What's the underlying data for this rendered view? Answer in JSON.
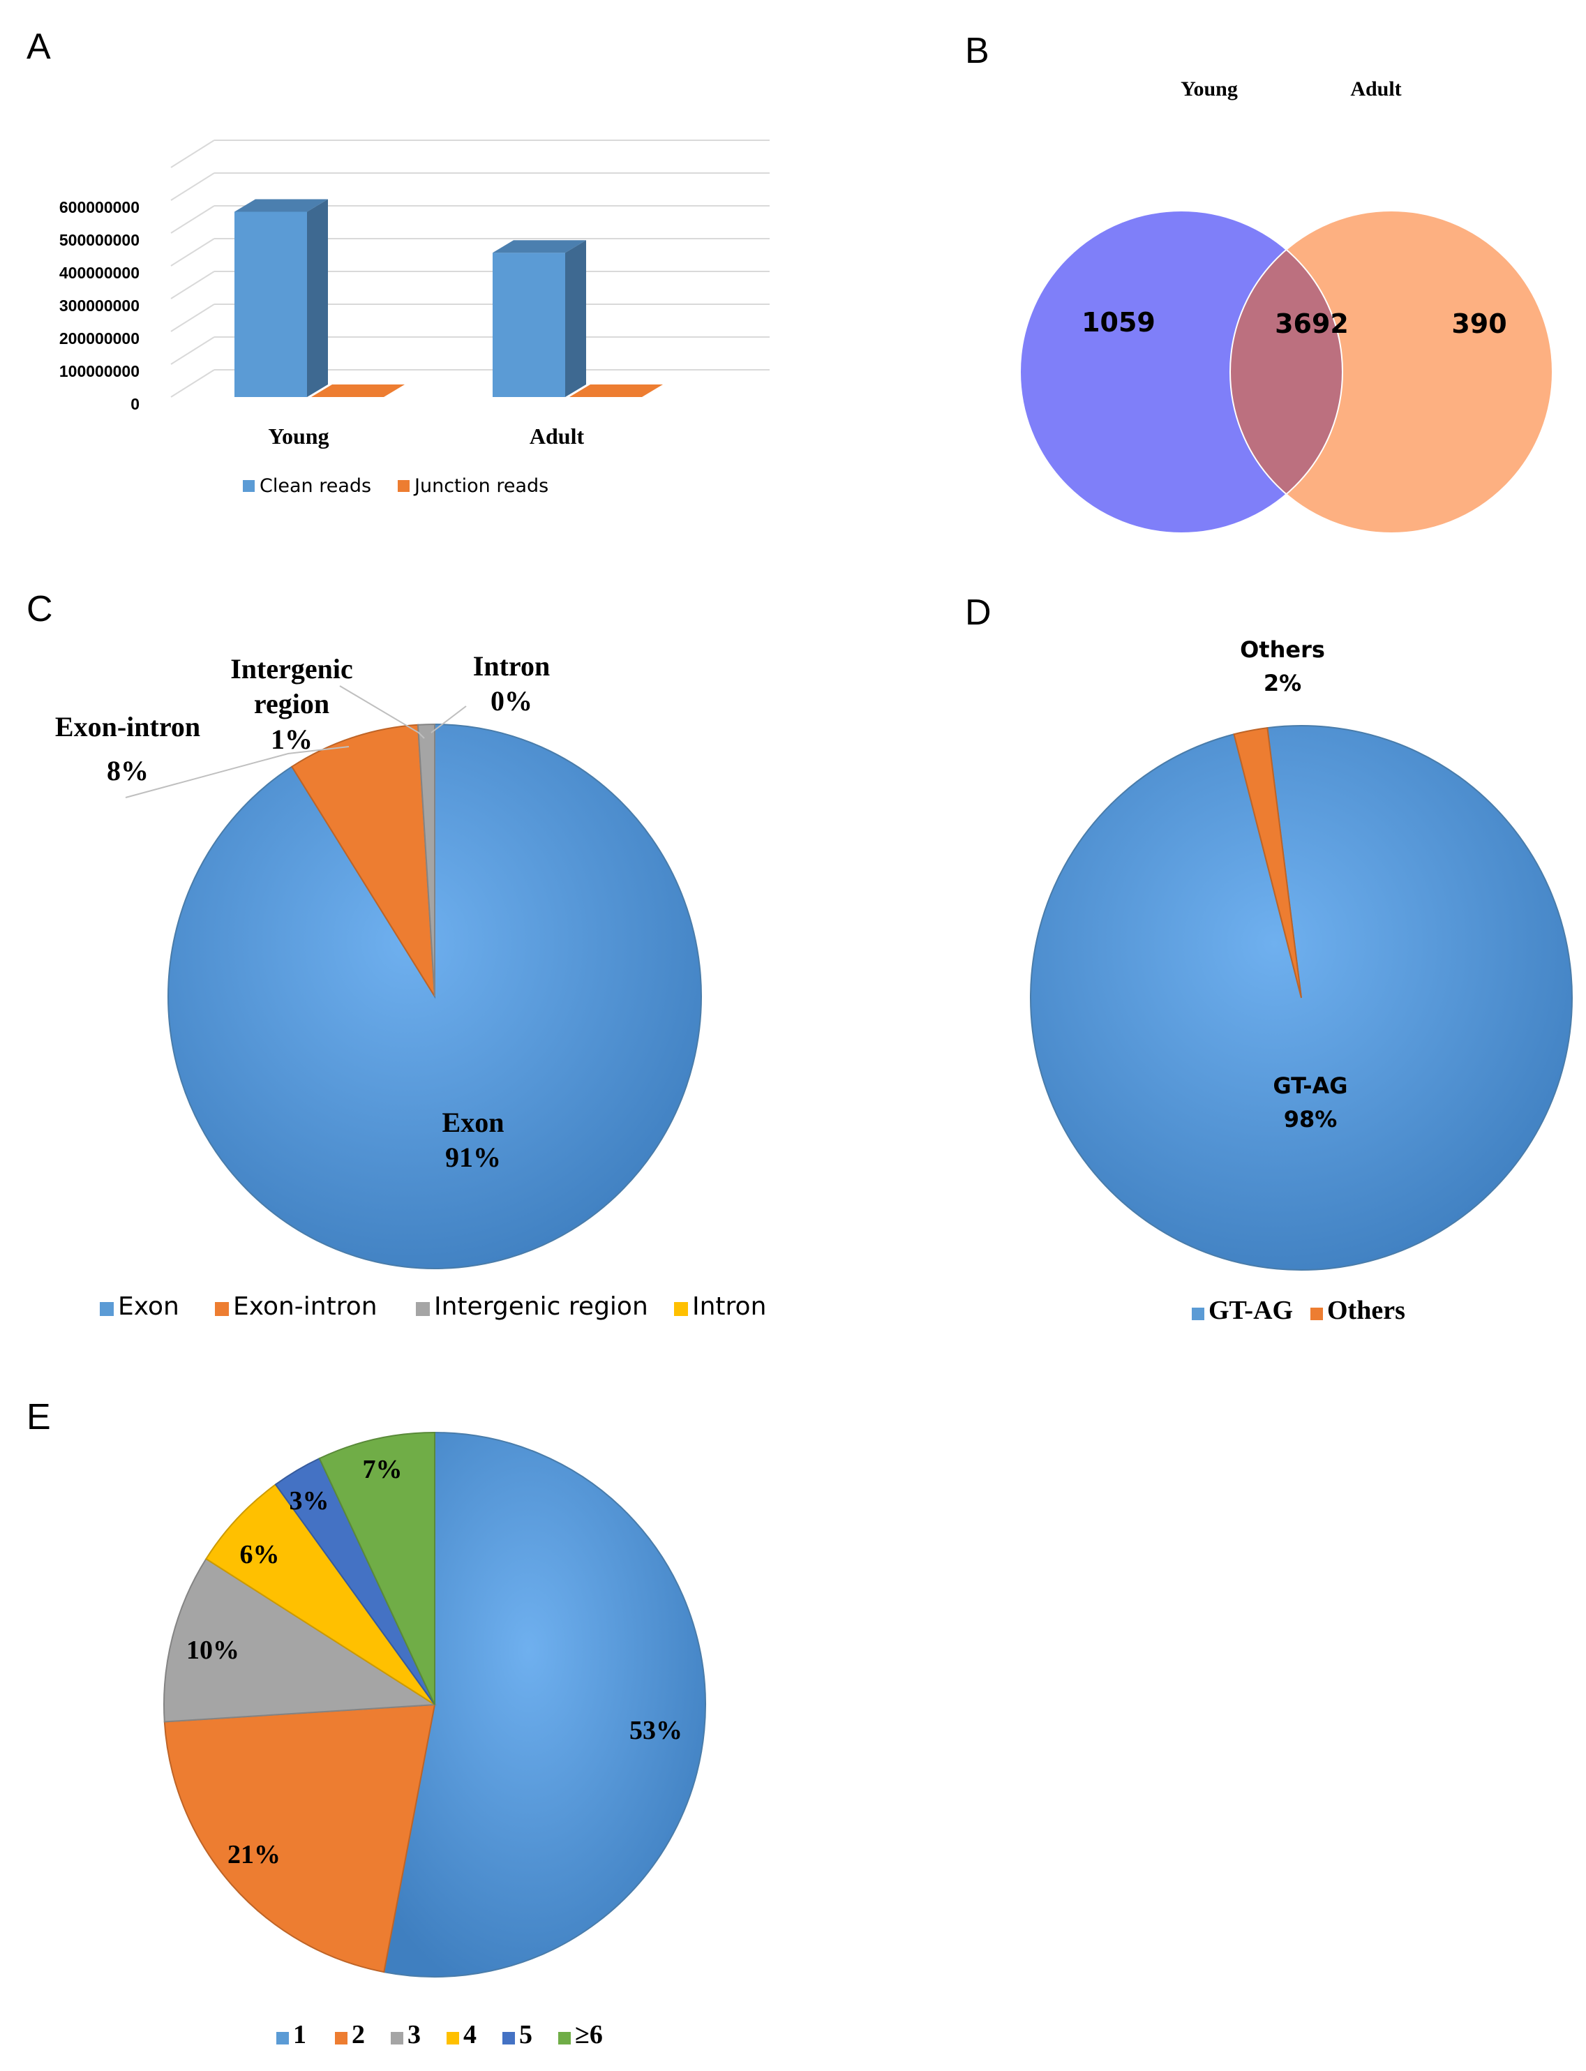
{
  "colors": {
    "blue": "#5b9bd5",
    "blue_dark": "#41719c",
    "orange": "#ed7d31",
    "gray": "#a5a5a5",
    "yellow": "#ffc000",
    "dark_blue": "#4472c4",
    "green": "#70ad47",
    "venn_young": "#7f7ff9",
    "venn_adult": "#fdb081",
    "venn_overlap": "#bc707f"
  },
  "panels": {
    "a": "A",
    "b": "B",
    "c": "C",
    "d": "D",
    "e": "E"
  },
  "chart_data": [
    {
      "panel": "A",
      "type": "bar",
      "style": "3d-clustered-column",
      "categories": [
        "Young",
        "Adult"
      ],
      "series": [
        {
          "name": "Clean reads",
          "color": "#5b9bd5",
          "values": [
            565000000,
            440000000
          ]
        },
        {
          "name": "Junction reads",
          "color": "#ed7d31",
          "values": [
            0,
            0
          ]
        }
      ],
      "yticks": [
        "0",
        "100000000",
        "200000000",
        "300000000",
        "400000000",
        "500000000",
        "600000000"
      ],
      "ylim": [
        0,
        700000000
      ],
      "grid": true,
      "legend": "bottom"
    },
    {
      "panel": "B",
      "type": "venn",
      "sets": [
        "Young",
        "Adult"
      ],
      "only_young": "1059",
      "both": "3692",
      "only_adult": "390"
    },
    {
      "panel": "C",
      "type": "pie",
      "slices": [
        {
          "name": "Exon",
          "value": 91,
          "label": "91%",
          "color": "#5b9bd5"
        },
        {
          "name": "Exon-intron",
          "value": 8,
          "label": "8%",
          "color": "#ed7d31"
        },
        {
          "name": "Intergenic region",
          "value": 1,
          "label": "1%",
          "color": "#a5a5a5"
        },
        {
          "name": "Intron",
          "value": 0,
          "label": "0%",
          "color": "#ffc000"
        }
      ],
      "callouts": {
        "exon_intron": "Exon-intron",
        "intergenic_1": "Intergenic",
        "intergenic_2": "region",
        "intron": "Intron",
        "exon": "Exon"
      },
      "legend": "bottom"
    },
    {
      "panel": "D",
      "type": "pie",
      "slices": [
        {
          "name": "GT-AG",
          "value": 98,
          "label": "98%",
          "color": "#5b9bd5"
        },
        {
          "name": "Others",
          "value": 2,
          "label": "2%",
          "color": "#ed7d31"
        }
      ],
      "legend": "bottom"
    },
    {
      "panel": "E",
      "type": "pie",
      "slices": [
        {
          "name": "1",
          "value": 53,
          "label": "53%",
          "color": "#5b9bd5"
        },
        {
          "name": "2",
          "value": 21,
          "label": "21%",
          "color": "#ed7d31"
        },
        {
          "name": "3",
          "value": 10,
          "label": "10%",
          "color": "#a5a5a5"
        },
        {
          "name": "4",
          "value": 6,
          "label": "6%",
          "color": "#ffc000"
        },
        {
          "name": "5",
          "value": 3,
          "label": "3%",
          "color": "#4472c4"
        },
        {
          "name": "≥6",
          "value": 7,
          "label": "7%",
          "color": "#70ad47"
        }
      ],
      "legend": "bottom"
    }
  ]
}
